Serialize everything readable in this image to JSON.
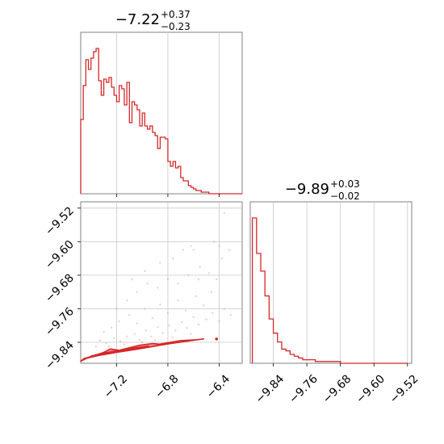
{
  "chart_data": [
    {
      "type": "histogram",
      "panel": "top-left",
      "parameter_index": 0,
      "title": {
        "median": "−7.22",
        "plus": "+0.37",
        "minus": "−0.23"
      },
      "xlim": [
        -7.48,
        -6.22
      ],
      "color": "#d62728",
      "bin_edges": [
        -7.48,
        -7.46,
        -7.44,
        -7.42,
        -7.4,
        -7.38,
        -7.36,
        -7.34,
        -7.32,
        -7.3,
        -7.28,
        -7.26,
        -7.24,
        -7.22,
        -7.2,
        -7.18,
        -7.16,
        -7.14,
        -7.12,
        -7.1,
        -7.08,
        -7.06,
        -7.04,
        -7.02,
        -7.0,
        -6.98,
        -6.96,
        -6.94,
        -6.92,
        -6.9,
        -6.88,
        -6.86,
        -6.84,
        -6.82,
        -6.8,
        -6.78,
        -6.76,
        -6.74,
        -6.72,
        -6.7,
        -6.68,
        -6.66,
        -6.64,
        -6.62,
        -6.6,
        -6.58,
        -6.56,
        -6.54,
        -6.52,
        -6.5,
        -6.48,
        -6.46,
        -6.44,
        -6.42,
        -6.4,
        -6.38,
        -6.36,
        -6.34,
        -6.32,
        -6.3,
        -6.28,
        -6.26,
        -6.24,
        -6.22
      ],
      "counts": [
        46,
        67,
        83,
        77,
        84,
        88,
        90,
        70,
        61,
        71,
        69,
        72,
        66,
        61,
        57,
        67,
        65,
        55,
        69,
        44,
        57,
        55,
        52,
        42,
        50,
        42,
        40,
        42,
        38,
        36,
        28,
        35,
        35,
        34,
        20,
        17,
        20,
        16,
        17,
        10,
        8,
        8,
        5,
        4,
        3,
        2,
        2,
        1,
        1,
        1,
        0,
        0,
        0,
        0,
        0,
        0,
        0,
        0,
        0,
        0,
        0,
        0,
        0
      ]
    },
    {
      "type": "scatter-contour",
      "panel": "bottom-left",
      "x_parameter": 0,
      "y_parameter": 1,
      "xlim": [
        -7.48,
        -6.22
      ],
      "ylim": [
        -9.89,
        -9.505
      ],
      "x_ticks": [
        "−7.2",
        "−6.8",
        "−6.4"
      ],
      "x_tick_values": [
        -7.2,
        -6.8,
        -6.4
      ],
      "y_ticks": [
        "−9.52",
        "−9.60",
        "−9.68",
        "−9.76",
        "−9.84"
      ],
      "y_tick_values": [
        -9.52,
        -9.6,
        -9.68,
        -9.76,
        -9.84
      ],
      "color": "#d62728",
      "contour_levels": [
        [
          [
            -7.48,
            -9.885
          ],
          [
            -7.42,
            -9.876
          ],
          [
            -7.3,
            -9.866
          ],
          [
            -7.15,
            -9.86
          ],
          [
            -7.0,
            -9.853
          ],
          [
            -6.88,
            -9.845
          ],
          [
            -6.78,
            -9.84
          ],
          [
            -6.7,
            -9.836
          ],
          [
            -6.58,
            -9.834
          ],
          [
            -6.52,
            -9.832
          ],
          [
            -6.62,
            -9.836
          ],
          [
            -6.78,
            -9.843
          ],
          [
            -6.9,
            -9.849
          ],
          [
            -7.05,
            -9.857
          ],
          [
            -7.2,
            -9.864
          ],
          [
            -7.35,
            -9.872
          ],
          [
            -7.45,
            -9.878
          ],
          [
            -7.48,
            -9.885
          ]
        ],
        [
          [
            -7.46,
            -9.88
          ],
          [
            -7.38,
            -9.872
          ],
          [
            -7.3,
            -9.864
          ],
          [
            -7.25,
            -9.856
          ],
          [
            -7.18,
            -9.859
          ],
          [
            -7.1,
            -9.853
          ],
          [
            -7.02,
            -9.847
          ],
          [
            -6.92,
            -9.843
          ],
          [
            -6.84,
            -9.845
          ],
          [
            -6.92,
            -9.85
          ],
          [
            -7.05,
            -9.856
          ],
          [
            -7.15,
            -9.86
          ],
          [
            -7.28,
            -9.867
          ],
          [
            -7.38,
            -9.874
          ],
          [
            -7.46,
            -9.88
          ]
        ],
        [
          [
            -7.4,
            -9.873
          ],
          [
            -7.3,
            -9.866
          ],
          [
            -7.2,
            -9.861
          ],
          [
            -7.1,
            -9.856
          ],
          [
            -7.0,
            -9.851
          ],
          [
            -6.95,
            -9.849
          ],
          [
            -7.05,
            -9.853
          ],
          [
            -7.15,
            -9.858
          ],
          [
            -7.25,
            -9.863
          ],
          [
            -7.35,
            -9.869
          ],
          [
            -7.4,
            -9.873
          ]
        ]
      ],
      "points": [
        [
          -7.33,
          -9.836
        ],
        [
          -7.28,
          -9.842
        ],
        [
          -7.22,
          -9.83
        ],
        [
          -7.17,
          -9.838
        ],
        [
          -7.12,
          -9.826
        ],
        [
          -7.06,
          -9.82
        ],
        [
          -7.02,
          -9.834
        ],
        [
          -6.97,
          -9.812
        ],
        [
          -6.93,
          -9.826
        ],
        [
          -6.88,
          -9.804
        ],
        [
          -6.84,
          -9.818
        ],
        [
          -6.79,
          -9.8
        ],
        [
          -6.74,
          -9.812
        ],
        [
          -6.69,
          -9.792
        ],
        [
          -6.65,
          -9.806
        ],
        [
          -6.6,
          -9.78
        ],
        [
          -6.56,
          -9.798
        ],
        [
          -6.5,
          -9.786
        ],
        [
          -6.45,
          -9.77
        ],
        [
          -6.4,
          -9.79
        ],
        [
          -6.36,
          -9.76
        ],
        [
          -6.31,
          -9.775
        ],
        [
          -7.3,
          -9.815
        ],
        [
          -7.24,
          -9.805
        ],
        [
          -7.18,
          -9.79
        ],
        [
          -7.1,
          -9.775
        ],
        [
          -7.04,
          -9.795
        ],
        [
          -6.98,
          -9.76
        ],
        [
          -6.92,
          -9.782
        ],
        [
          -6.86,
          -9.75
        ],
        [
          -6.8,
          -9.77
        ],
        [
          -6.72,
          -9.74
        ],
        [
          -6.66,
          -9.764
        ],
        [
          -6.58,
          -9.73
        ],
        [
          -6.52,
          -9.752
        ],
        [
          -6.46,
          -9.72
        ],
        [
          -7.2,
          -9.76
        ],
        [
          -7.12,
          -9.74
        ],
        [
          -7.04,
          -9.72
        ],
        [
          -6.96,
          -9.7
        ],
        [
          -6.88,
          -9.71
        ],
        [
          -6.8,
          -9.69
        ],
        [
          -6.72,
          -9.7
        ],
        [
          -6.64,
          -9.68
        ],
        [
          -6.56,
          -9.69
        ],
        [
          -6.48,
          -9.675
        ],
        [
          -6.42,
          -9.69
        ],
        [
          -6.76,
          -9.64
        ],
        [
          -6.86,
          -9.65
        ],
        [
          -6.6,
          -9.62
        ],
        [
          -6.55,
          -9.66
        ],
        [
          -6.68,
          -9.62
        ],
        [
          -6.4,
          -9.61
        ],
        [
          -6.38,
          -9.64
        ],
        [
          -6.32,
          -9.62
        ],
        [
          -6.98,
          -9.67
        ],
        [
          -7.08,
          -9.69
        ],
        [
          -6.36,
          -9.532
        ],
        [
          -6.62,
          -9.61
        ],
        [
          -6.44,
          -9.6
        ],
        [
          -7.36,
          -9.85
        ],
        [
          -7.26,
          -9.85
        ],
        [
          -7.14,
          -9.845
        ],
        [
          -7.0,
          -9.84
        ],
        [
          -6.9,
          -9.835
        ],
        [
          -6.76,
          -9.828
        ],
        [
          -6.62,
          -9.82
        ]
      ],
      "dot": [
        -6.42,
        -9.832
      ]
    },
    {
      "type": "histogram",
      "panel": "bottom-right",
      "parameter_index": 1,
      "title": {
        "median": "−9.89",
        "plus": "+0.03",
        "minus": "−0.02"
      },
      "xlim": [
        -9.895,
        -9.51
      ],
      "x_ticks": [
        "−9.84",
        "−9.76",
        "−9.68",
        "−9.60",
        "−9.52"
      ],
      "x_tick_values": [
        -9.84,
        -9.76,
        -9.68,
        -9.6,
        -9.52
      ],
      "color": "#d62728",
      "bin_edges": [
        -9.89,
        -9.88,
        -9.87,
        -9.86,
        -9.85,
        -9.84,
        -9.83,
        -9.82,
        -9.81,
        -9.8,
        -9.79,
        -9.78,
        -9.77,
        -9.76,
        -9.75,
        -9.74,
        -9.73,
        -9.72,
        -9.71,
        -9.7,
        -9.69,
        -9.68,
        -9.67,
        -9.66,
        -9.65,
        -9.64,
        -9.63,
        -9.62,
        -9.61,
        -9.6,
        -9.59,
        -9.58,
        -9.57,
        -9.56,
        -9.55,
        -9.54,
        -9.53,
        -9.52
      ],
      "counts": [
        82,
        62,
        52,
        38,
        25,
        17,
        12,
        8,
        7,
        5,
        4,
        3,
        2,
        2,
        2,
        1,
        1,
        1,
        1,
        1,
        1,
        0,
        0,
        0,
        0,
        0,
        0,
        0,
        0,
        0,
        0,
        0,
        0,
        0,
        0,
        0,
        0
      ]
    }
  ]
}
